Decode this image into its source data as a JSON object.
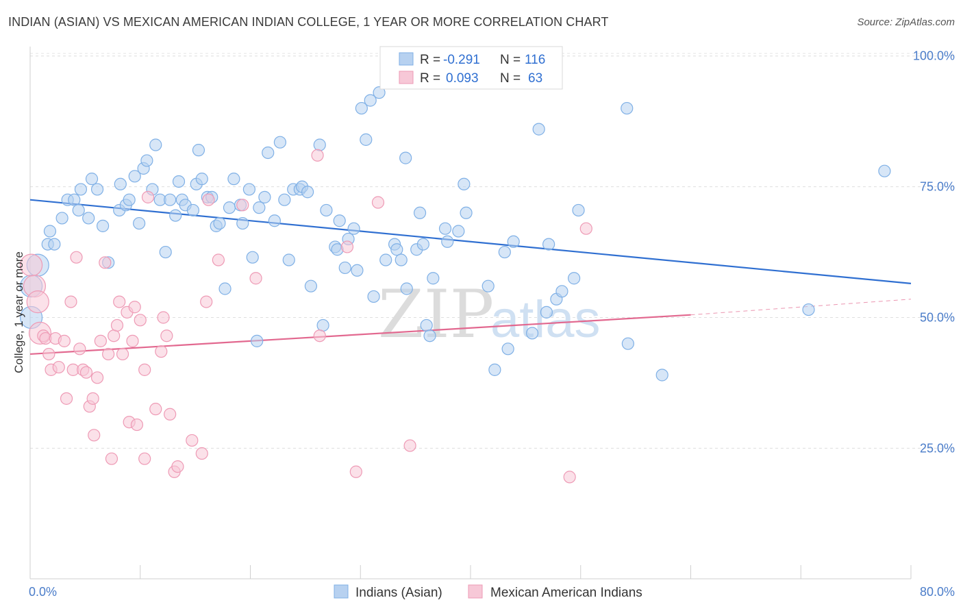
{
  "header": {
    "title": "INDIAN (ASIAN) VS MEXICAN AMERICAN INDIAN COLLEGE, 1 YEAR OR MORE CORRELATION CHART",
    "source": "Source: ZipAtlas.com"
  },
  "watermark": {
    "zip": "ZIP",
    "atlas": "atlas"
  },
  "chart_data": {
    "type": "scatter",
    "xlabel": "",
    "ylabel": "College, 1 year or more",
    "xlim": [
      0,
      80
    ],
    "ylim": [
      0,
      105
    ],
    "x_tick_labels": {
      "min": "0.0%",
      "max": "80.0%"
    },
    "y_ticks": [
      {
        "value": 25,
        "label": "25.0%"
      },
      {
        "value": 50,
        "label": "50.0%"
      },
      {
        "value": 75,
        "label": "75.0%"
      },
      {
        "value": 100,
        "label": "100.0%"
      }
    ],
    "grid": "horizontal dashed",
    "legend_position": "top-center",
    "stats": [
      {
        "r_label": "R =",
        "r_value": "-0.291",
        "n_label": "N =",
        "n_value": "116"
      },
      {
        "r_label": "R =",
        "r_value": "0.093",
        "n_label": "N =",
        "n_value": "63"
      }
    ],
    "series": [
      {
        "name": "Indians (Asian)",
        "color": "#7fb0e6",
        "fill": "#b7d1f0",
        "trend": {
          "x0": 0,
          "y0": 72.5,
          "x1": 80,
          "y1": 56.5,
          "color": "#2f6fd1"
        },
        "points": [
          [
            0.1,
            56
          ],
          [
            0.1,
            50
          ],
          [
            0.7,
            60
          ],
          [
            1.6,
            64
          ],
          [
            2.2,
            64
          ],
          [
            1.8,
            66.5
          ],
          [
            2.9,
            69
          ],
          [
            3.4,
            72.5
          ],
          [
            4.0,
            72.5
          ],
          [
            4.6,
            74.5
          ],
          [
            4.4,
            70.5
          ],
          [
            5.3,
            69
          ],
          [
            5.6,
            76.5
          ],
          [
            6.1,
            74.5
          ],
          [
            6.6,
            67.5
          ],
          [
            7.1,
            60.5
          ],
          [
            8.1,
            70.5
          ],
          [
            8.2,
            75.5
          ],
          [
            8.7,
            71.5
          ],
          [
            9.0,
            72.5
          ],
          [
            9.9,
            68
          ],
          [
            9.5,
            77
          ],
          [
            10.3,
            78.5
          ],
          [
            10.6,
            80
          ],
          [
            11.1,
            74.5
          ],
          [
            11.4,
            83
          ],
          [
            11.8,
            72.5
          ],
          [
            12.3,
            62.5
          ],
          [
            12.7,
            72.5
          ],
          [
            13.2,
            69.5
          ],
          [
            13.5,
            76
          ],
          [
            13.8,
            72.5
          ],
          [
            14.1,
            71.5
          ],
          [
            14.8,
            70.5
          ],
          [
            15.1,
            75.5
          ],
          [
            15.3,
            82
          ],
          [
            15.6,
            76.5
          ],
          [
            16.1,
            73
          ],
          [
            16.5,
            73
          ],
          [
            16.9,
            67.5
          ],
          [
            17.2,
            68
          ],
          [
            17.7,
            55.5
          ],
          [
            18.1,
            71
          ],
          [
            18.5,
            76.5
          ],
          [
            19.1,
            71.5
          ],
          [
            19.3,
            68
          ],
          [
            19.9,
            74.5
          ],
          [
            20.2,
            61.5
          ],
          [
            20.6,
            45.5
          ],
          [
            20.8,
            71
          ],
          [
            21.3,
            73
          ],
          [
            21.6,
            81.5
          ],
          [
            22.2,
            68.5
          ],
          [
            22.7,
            83.5
          ],
          [
            23.1,
            72.5
          ],
          [
            23.5,
            61
          ],
          [
            23.9,
            74.5
          ],
          [
            24.5,
            74.5
          ],
          [
            24.7,
            75
          ],
          [
            25.2,
            74
          ],
          [
            25.5,
            56
          ],
          [
            26.3,
            83
          ],
          [
            26.6,
            48.5
          ],
          [
            26.9,
            70.5
          ],
          [
            27.7,
            63.5
          ],
          [
            27.9,
            63
          ],
          [
            28.1,
            68.5
          ],
          [
            28.6,
            59.5
          ],
          [
            28.9,
            65
          ],
          [
            29.4,
            67
          ],
          [
            29.7,
            59
          ],
          [
            30.1,
            90
          ],
          [
            30.5,
            84
          ],
          [
            30.9,
            91.5
          ],
          [
            31.2,
            54
          ],
          [
            31.7,
            93
          ],
          [
            32.3,
            61
          ],
          [
            33.1,
            64
          ],
          [
            33.3,
            63
          ],
          [
            33.7,
            61
          ],
          [
            34.1,
            80.5
          ],
          [
            34.2,
            55.5
          ],
          [
            35.1,
            63
          ],
          [
            35.4,
            70
          ],
          [
            35.7,
            64
          ],
          [
            36.0,
            48.5
          ],
          [
            36.3,
            46.5
          ],
          [
            36.6,
            57.5
          ],
          [
            37.7,
            67
          ],
          [
            37.9,
            64.5
          ],
          [
            38.9,
            66.5
          ],
          [
            39.4,
            75.5
          ],
          [
            39.6,
            70
          ],
          [
            41.6,
            56
          ],
          [
            42.2,
            40
          ],
          [
            43.1,
            62.5
          ],
          [
            43.4,
            44
          ],
          [
            43.9,
            64.5
          ],
          [
            45.6,
            47
          ],
          [
            46.2,
            86
          ],
          [
            46.9,
            51
          ],
          [
            47.1,
            64
          ],
          [
            47.8,
            53.5
          ],
          [
            48.3,
            55
          ],
          [
            49.4,
            57.5
          ],
          [
            49.8,
            70.5
          ],
          [
            54.2,
            90
          ],
          [
            54.3,
            45
          ],
          [
            57.4,
            39
          ],
          [
            70.7,
            51.5
          ],
          [
            77.6,
            78
          ]
        ]
      },
      {
        "name": "Mexican American Indians",
        "color": "#ee9ab5",
        "fill": "#f7c8d7",
        "trend": {
          "x0": 0,
          "y0": 43,
          "x1": 60,
          "y1": 50.5,
          "color": "#e2688f",
          "dash_to": {
            "x": 80,
            "y": 53.5
          }
        },
        "points": [
          [
            0.1,
            60
          ],
          [
            0.4,
            56
          ],
          [
            0.7,
            53
          ],
          [
            0.9,
            47
          ],
          [
            1.2,
            46.5
          ],
          [
            1.4,
            46
          ],
          [
            1.7,
            43
          ],
          [
            1.9,
            40
          ],
          [
            2.3,
            46
          ],
          [
            2.6,
            40.5
          ],
          [
            3.1,
            45.5
          ],
          [
            3.3,
            34.5
          ],
          [
            3.7,
            53
          ],
          [
            3.9,
            40
          ],
          [
            4.2,
            61.5
          ],
          [
            4.5,
            44
          ],
          [
            4.8,
            40
          ],
          [
            5.1,
            39.5
          ],
          [
            5.4,
            33
          ],
          [
            5.7,
            34.5
          ],
          [
            5.8,
            27.5
          ],
          [
            6.1,
            38.5
          ],
          [
            6.4,
            45.5
          ],
          [
            6.8,
            60.5
          ],
          [
            7.1,
            43
          ],
          [
            7.4,
            23
          ],
          [
            7.6,
            46.5
          ],
          [
            7.9,
            48.5
          ],
          [
            8.1,
            53
          ],
          [
            8.4,
            43
          ],
          [
            8.8,
            51
          ],
          [
            9.0,
            30
          ],
          [
            9.3,
            45.5
          ],
          [
            9.5,
            52
          ],
          [
            9.7,
            29.5
          ],
          [
            10.0,
            49.5
          ],
          [
            10.4,
            23
          ],
          [
            10.4,
            40
          ],
          [
            10.7,
            73
          ],
          [
            11.4,
            32.5
          ],
          [
            11.9,
            43.5
          ],
          [
            12.1,
            50
          ],
          [
            12.4,
            46.5
          ],
          [
            12.7,
            31.5
          ],
          [
            13.1,
            20.5
          ],
          [
            13.4,
            21.5
          ],
          [
            14.7,
            26.5
          ],
          [
            15.6,
            24
          ],
          [
            16.0,
            53
          ],
          [
            16.2,
            72.5
          ],
          [
            17.1,
            61
          ],
          [
            19.3,
            71.5
          ],
          [
            20.5,
            57.5
          ],
          [
            26.1,
            81
          ],
          [
            26.3,
            46.5
          ],
          [
            28.8,
            63.5
          ],
          [
            29.6,
            20.5
          ],
          [
            31.6,
            72
          ],
          [
            34.5,
            25.5
          ],
          [
            49.0,
            19.5
          ],
          [
            50.5,
            67
          ]
        ]
      }
    ]
  }
}
